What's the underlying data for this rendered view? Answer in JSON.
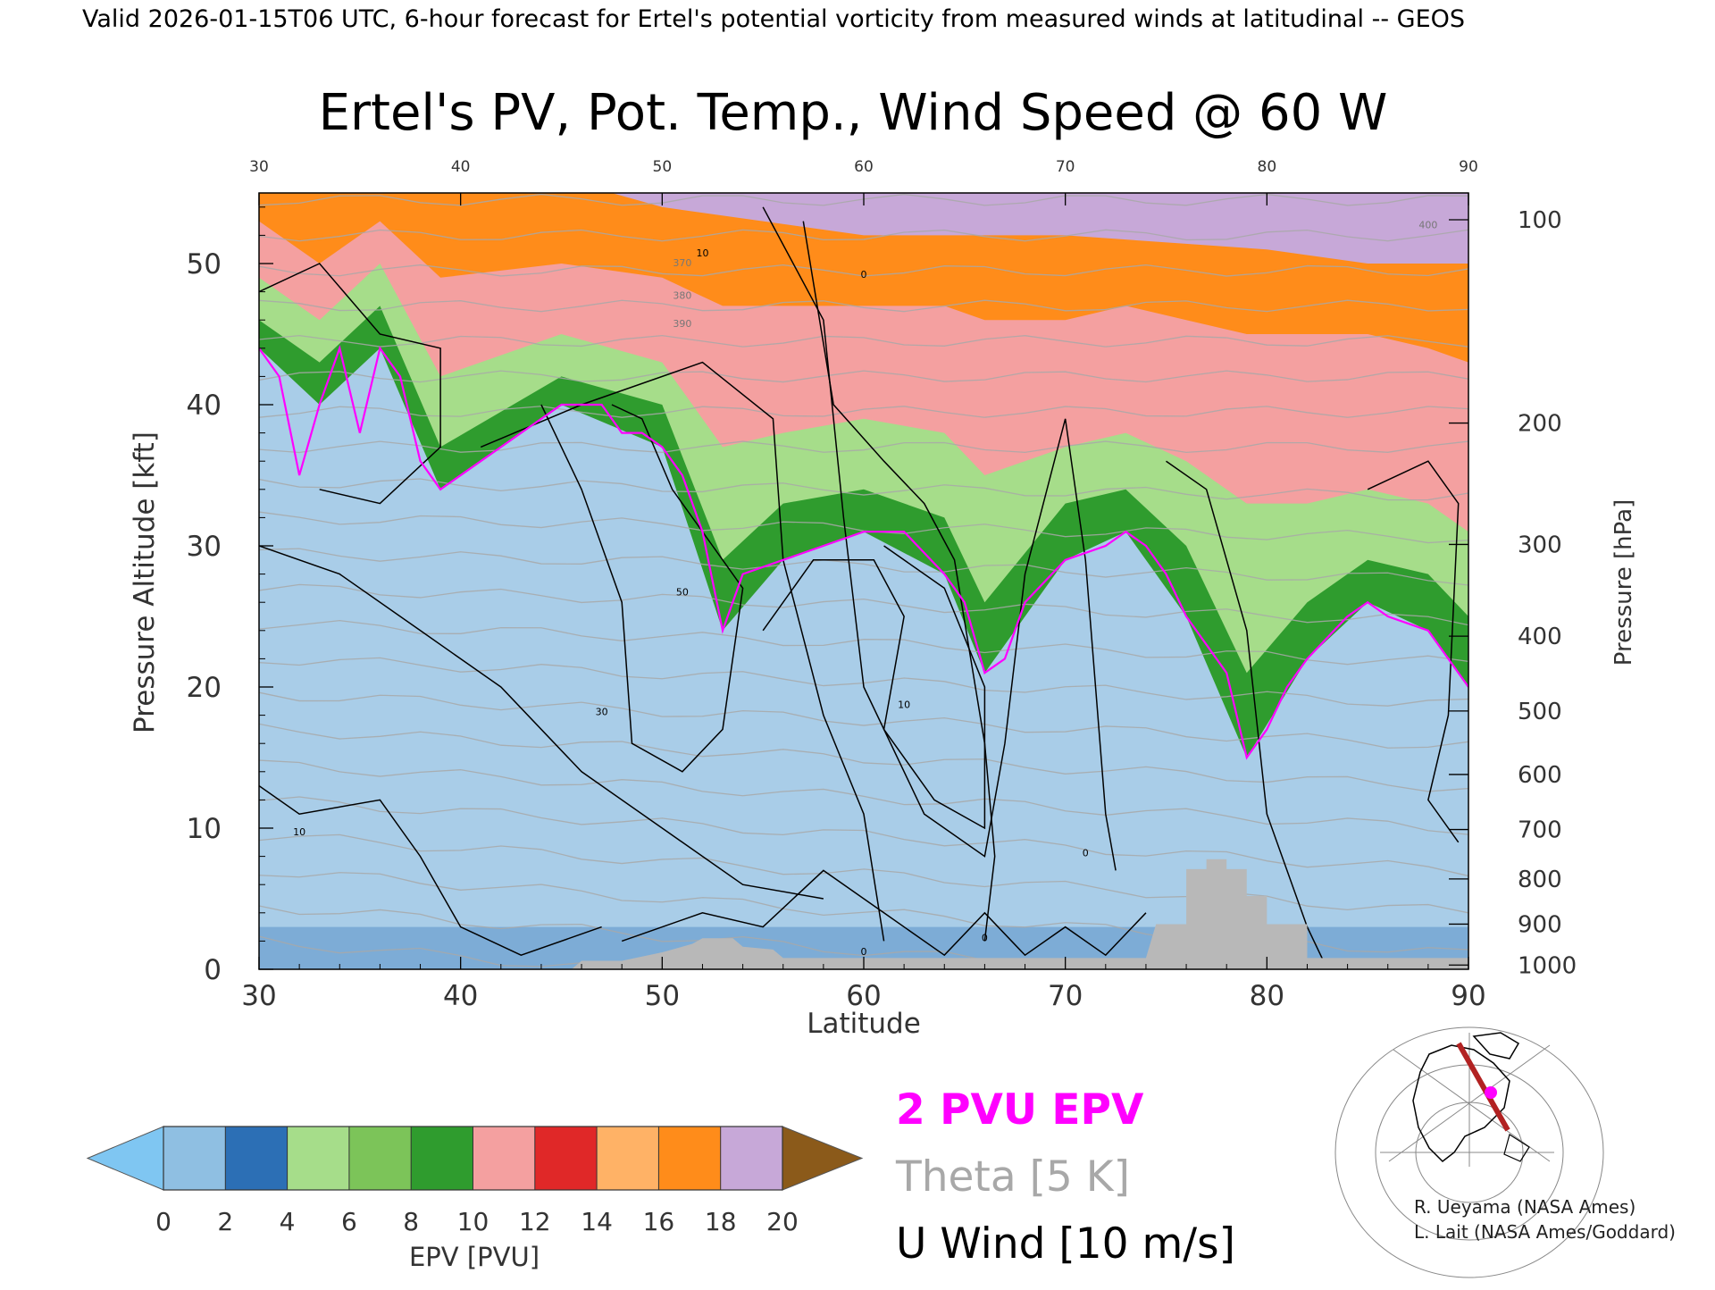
{
  "header": {
    "valid_line": "Valid 2026-01-15T06 UTC, 6-hour forecast for Ertel's potential vorticity from measured winds at latitudinal -- GEOS",
    "title": "Ertel's PV, Pot. Temp., Wind Speed @ 60 W"
  },
  "chart_data": {
    "type": "heatmap",
    "title": "Ertel's PV, Pot. Temp., Wind Speed @ 60 W",
    "xlabel": "Latitude",
    "ylabel": "Pressure Altitude [kft]",
    "y2label": "Pressure [hPa]",
    "xlim": [
      30,
      90
    ],
    "ylim": [
      0,
      55
    ],
    "x_ticks": [
      "30",
      "40",
      "50",
      "60",
      "70",
      "80",
      "90"
    ],
    "x_ticks_top": [
      "30",
      "40",
      "50",
      "60",
      "70",
      "80",
      "90"
    ],
    "y_ticks": [
      "0",
      "10",
      "20",
      "30",
      "40",
      "50"
    ],
    "pressure_ticks": [
      {
        "hpa": 100,
        "kft": 53.1
      },
      {
        "hpa": 200,
        "kft": 38.7
      },
      {
        "hpa": 300,
        "kft": 30.1
      },
      {
        "hpa": 400,
        "kft": 23.6
      },
      {
        "hpa": 500,
        "kft": 18.3
      },
      {
        "hpa": 600,
        "kft": 13.8
      },
      {
        "hpa": 700,
        "kft": 9.9
      },
      {
        "hpa": 800,
        "kft": 6.4
      },
      {
        "hpa": 900,
        "kft": 3.2
      },
      {
        "hpa": 1000,
        "kft": 0.3
      }
    ],
    "tropopause_2pvu_kft": [
      [
        30,
        44
      ],
      [
        31,
        42
      ],
      [
        32,
        35
      ],
      [
        33,
        40
      ],
      [
        34,
        44
      ],
      [
        35,
        38
      ],
      [
        36,
        44
      ],
      [
        37,
        42
      ],
      [
        38,
        36
      ],
      [
        39,
        34
      ],
      [
        41,
        36
      ],
      [
        43,
        38
      ],
      [
        45,
        40
      ],
      [
        47,
        40
      ],
      [
        48,
        38
      ],
      [
        49,
        38
      ],
      [
        50,
        37
      ],
      [
        51,
        35
      ],
      [
        52,
        31
      ],
      [
        53,
        24
      ],
      [
        54,
        28
      ],
      [
        56,
        29
      ],
      [
        58,
        30
      ],
      [
        60,
        31
      ],
      [
        62,
        31
      ],
      [
        64,
        28
      ],
      [
        65,
        26
      ],
      [
        66,
        21
      ],
      [
        67,
        22
      ],
      [
        68,
        26
      ],
      [
        70,
        29
      ],
      [
        72,
        30
      ],
      [
        73,
        31
      ],
      [
        74,
        30
      ],
      [
        75,
        28
      ],
      [
        76,
        25
      ],
      [
        77,
        23
      ],
      [
        78,
        21
      ],
      [
        79,
        15
      ],
      [
        80,
        17
      ],
      [
        81,
        20
      ],
      [
        82,
        22
      ],
      [
        84,
        25
      ],
      [
        85,
        26
      ],
      [
        86,
        25
      ],
      [
        88,
        24
      ],
      [
        89,
        22
      ],
      [
        90,
        20
      ]
    ],
    "pv_bands": [
      {
        "pvu": 2,
        "kft": [
          [
            30,
            44
          ],
          [
            33,
            40
          ],
          [
            36,
            44
          ],
          [
            39,
            34
          ],
          [
            45,
            40
          ],
          [
            50,
            37
          ],
          [
            53,
            24
          ],
          [
            56,
            29
          ],
          [
            60,
            31
          ],
          [
            64,
            28
          ],
          [
            66,
            21
          ],
          [
            70,
            29
          ],
          [
            73,
            31
          ],
          [
            76,
            25
          ],
          [
            79,
            15
          ],
          [
            82,
            22
          ],
          [
            85,
            26
          ],
          [
            88,
            24
          ],
          [
            90,
            20
          ]
        ]
      },
      {
        "pvu": 4,
        "kft": [
          [
            30,
            46
          ],
          [
            33,
            43
          ],
          [
            36,
            47
          ],
          [
            39,
            37
          ],
          [
            45,
            42
          ],
          [
            50,
            40
          ],
          [
            53,
            29
          ],
          [
            56,
            33
          ],
          [
            60,
            34
          ],
          [
            64,
            32
          ],
          [
            66,
            26
          ],
          [
            70,
            33
          ],
          [
            73,
            34
          ],
          [
            76,
            30
          ],
          [
            79,
            21
          ],
          [
            82,
            26
          ],
          [
            85,
            29
          ],
          [
            88,
            28
          ],
          [
            90,
            25
          ]
        ]
      },
      {
        "pvu": 6,
        "kft": [
          [
            30,
            49
          ],
          [
            33,
            46
          ],
          [
            36,
            50
          ],
          [
            39,
            42
          ],
          [
            45,
            45
          ],
          [
            50,
            43
          ],
          [
            53,
            37
          ],
          [
            56,
            38
          ],
          [
            60,
            39
          ],
          [
            64,
            38
          ],
          [
            66,
            35
          ],
          [
            70,
            37
          ],
          [
            73,
            38
          ],
          [
            76,
            36
          ],
          [
            79,
            33
          ],
          [
            82,
            33
          ],
          [
            85,
            34
          ],
          [
            88,
            33
          ],
          [
            90,
            31
          ]
        ]
      },
      {
        "pvu": 10,
        "kft": [
          [
            30,
            53
          ],
          [
            33,
            50
          ],
          [
            36,
            53
          ],
          [
            39,
            49
          ],
          [
            45,
            50
          ],
          [
            50,
            49
          ],
          [
            53,
            47
          ],
          [
            56,
            47
          ],
          [
            60,
            47
          ],
          [
            64,
            47
          ],
          [
            66,
            46
          ],
          [
            70,
            46
          ],
          [
            73,
            47
          ],
          [
            76,
            46
          ],
          [
            79,
            45
          ],
          [
            82,
            45
          ],
          [
            85,
            45
          ],
          [
            88,
            44
          ],
          [
            90,
            43
          ]
        ]
      },
      {
        "pvu": 14,
        "kft": [
          [
            30,
            56
          ],
          [
            45,
            56
          ],
          [
            50,
            54
          ],
          [
            55,
            53
          ],
          [
            60,
            52
          ],
          [
            70,
            52
          ],
          [
            80,
            51
          ],
          [
            85,
            50
          ],
          [
            90,
            50
          ]
        ]
      }
    ],
    "theta_contours_K": [
      "370",
      "380",
      "390",
      "400"
    ],
    "u_wind_contour_labels": [
      "30",
      "10",
      "0",
      "50",
      "30",
      "10",
      "10",
      "0",
      "0",
      "0",
      "10"
    ],
    "terrain_kft": [
      [
        30,
        0
      ],
      [
        45.5,
        0
      ],
      [
        46,
        0.6
      ],
      [
        48,
        0.6
      ],
      [
        50,
        1.2
      ],
      [
        51.5,
        1.8
      ],
      [
        52,
        2.2
      ],
      [
        53.5,
        2.2
      ],
      [
        54,
        1.6
      ],
      [
        55.5,
        1.4
      ],
      [
        56,
        0.8
      ],
      [
        66,
        0.8
      ],
      [
        72,
        0.8
      ],
      [
        74,
        0.8
      ],
      [
        74.5,
        3.2
      ],
      [
        76,
        3.2
      ],
      [
        76,
        7.1
      ],
      [
        77,
        7.1
      ],
      [
        77,
        7.8
      ],
      [
        78,
        7.8
      ],
      [
        78,
        7.1
      ],
      [
        79,
        7.1
      ],
      [
        79,
        5.2
      ],
      [
        80,
        5.2
      ],
      [
        80,
        3.2
      ],
      [
        82,
        3.2
      ],
      [
        82,
        0.8
      ],
      [
        90,
        0.8
      ]
    ],
    "colorbar": {
      "label": "EPV [PVU]",
      "ticks": [
        "0",
        "2",
        "4",
        "6",
        "8",
        "10",
        "12",
        "14",
        "16",
        "18",
        "20"
      ],
      "colors": [
        "#7fc6f2",
        "#8fbfe2",
        "#2c6fb5",
        "#a6dd8a",
        "#7cc459",
        "#2f9c2e",
        "#f4a0a0",
        "#e02828",
        "#ffb266",
        "#ff8c1a",
        "#c7a8d8",
        "#6a3d9a",
        "#ffff99",
        "#8b5a1a"
      ]
    }
  },
  "legend": {
    "epv_label": "2 PVU EPV",
    "theta_label": "Theta [5 K]",
    "uwind_label": "U Wind [10 m/s]",
    "colors": {
      "epv": "#ff00ff",
      "theta": "#a8a8a8",
      "uwind": "#000000"
    }
  },
  "credits": {
    "line1": "R. Ueyama (NASA Ames)",
    "line2": "L. Lait (NASA Ames/Goddard)"
  },
  "inset_map": {
    "icon": "polar-map-icon",
    "track_color": "#b22222",
    "marker_color": "#ff00ff"
  }
}
